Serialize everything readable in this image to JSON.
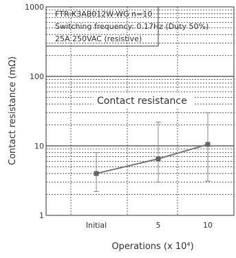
{
  "chart_data": {
    "type": "line",
    "yscale": "log",
    "ylim": [
      1,
      1000
    ],
    "ylabel": "Contact resistance (mΩ)",
    "xlabel": "Operations (x 10⁴)",
    "x_ticks": [
      "Initial",
      "5",
      "10"
    ],
    "y_ticks": [
      "1",
      "10",
      "100",
      "1000"
    ],
    "grid": true,
    "notes": [
      "FTR-K3AB012W-WG n=10",
      "Switching frequency: 0.17Hz (Duty 50%)",
      "25A 250VAC (resistive)"
    ],
    "annotation": "Contact resistance",
    "series": [
      {
        "x": [
          "Initial",
          "5",
          "10"
        ],
        "values": [
          4.0,
          6.5,
          10.5
        ],
        "min": [
          2.2,
          3.0,
          3.1
        ],
        "max": [
          8.0,
          22.0,
          30.0
        ]
      }
    ],
    "colors": {
      "line": "#777777",
      "marker": "#666666",
      "error_bar": "#888888",
      "axis": "#333333",
      "major_grid": "#444444",
      "minor_grid": "#333333"
    }
  }
}
